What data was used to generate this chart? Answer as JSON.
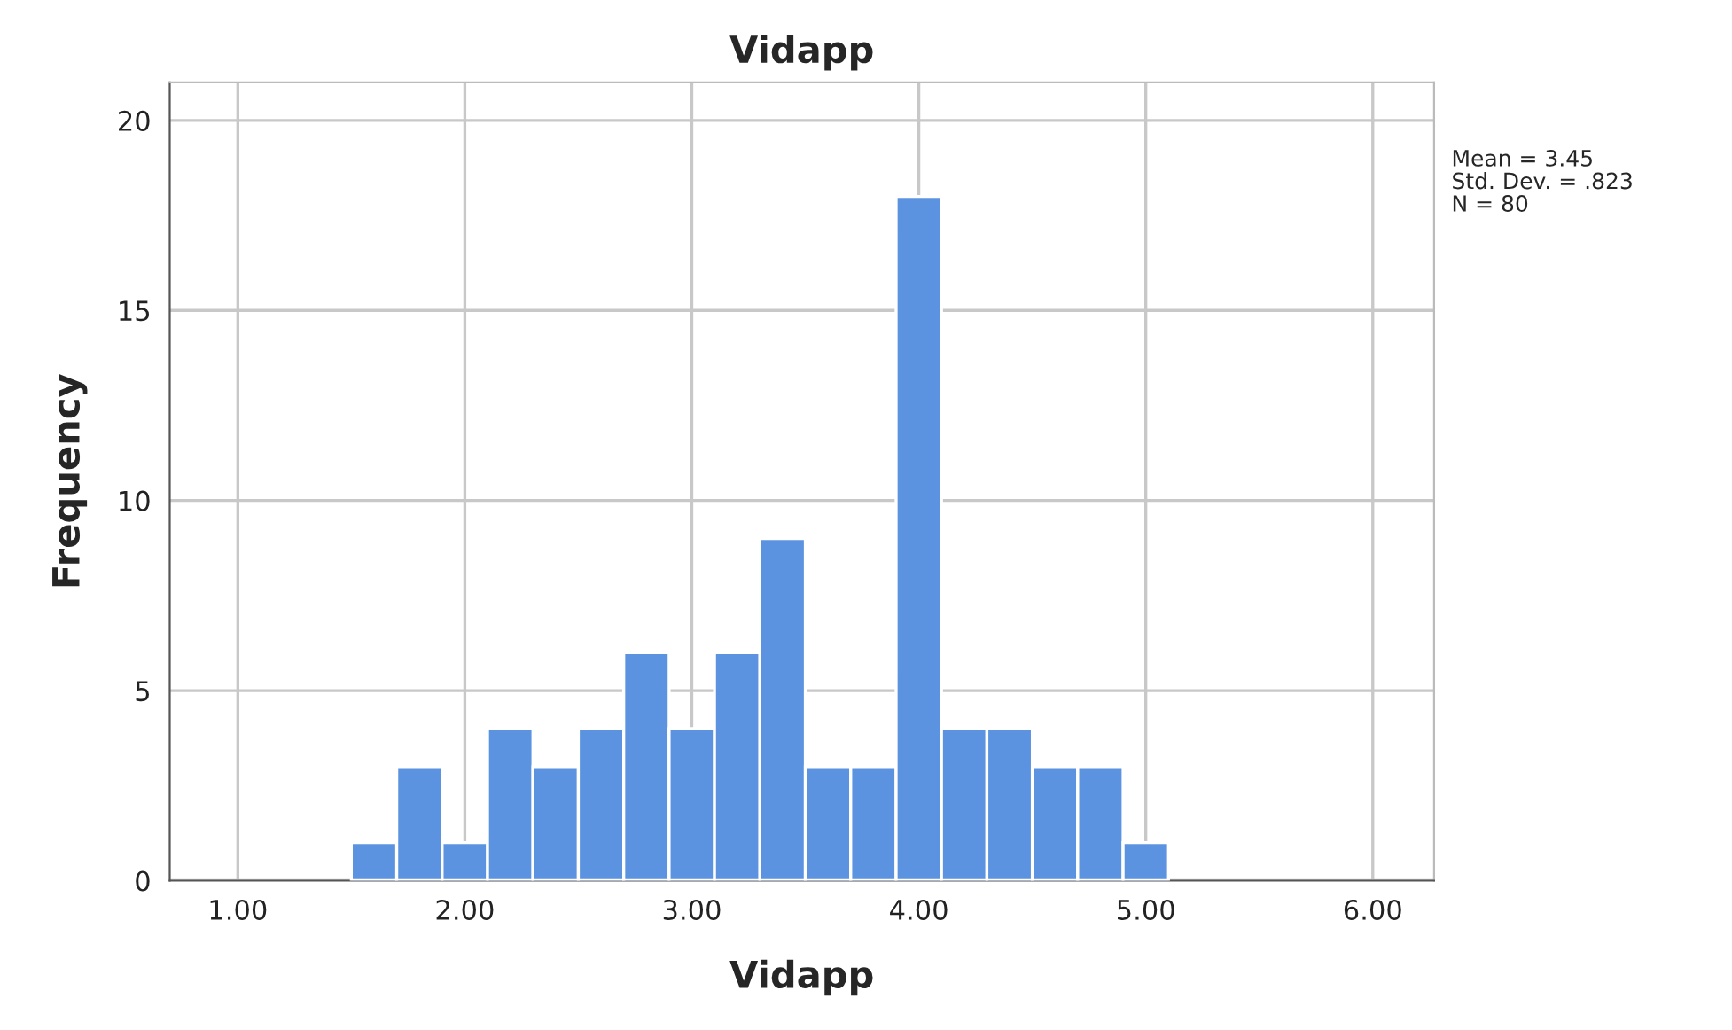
{
  "chart_data": {
    "type": "histogram",
    "title": "Vidapp",
    "xlabel": "Vidapp",
    "ylabel": "Frequency",
    "bins": [
      1.5,
      1.7,
      1.9,
      2.1,
      2.3,
      2.5,
      2.7,
      2.9,
      3.1,
      3.3,
      3.5,
      3.7,
      3.9,
      4.1,
      4.3,
      4.5,
      4.7,
      4.9,
      5.1
    ],
    "values": [
      1,
      3,
      1,
      4,
      3,
      4,
      6,
      4,
      6,
      9,
      3,
      3,
      18,
      4,
      4,
      3,
      3,
      1
    ],
    "color": "#5b93e0",
    "xlim": [
      0.7,
      6.27
    ],
    "ylim": [
      0,
      21
    ],
    "xticks": [
      {
        "value": 1,
        "label": "1.00"
      },
      {
        "value": 2,
        "label": "2.00"
      },
      {
        "value": 3,
        "label": "3.00"
      },
      {
        "value": 4,
        "label": "4.00"
      },
      {
        "value": 5,
        "label": "5.00"
      },
      {
        "value": 6,
        "label": "6.00"
      }
    ],
    "yticks": [
      0,
      5,
      10,
      15,
      20
    ],
    "grid": true,
    "annotations": [
      "Mean = 3.45",
      "Std. Dev. = .823",
      "N = 80"
    ]
  }
}
